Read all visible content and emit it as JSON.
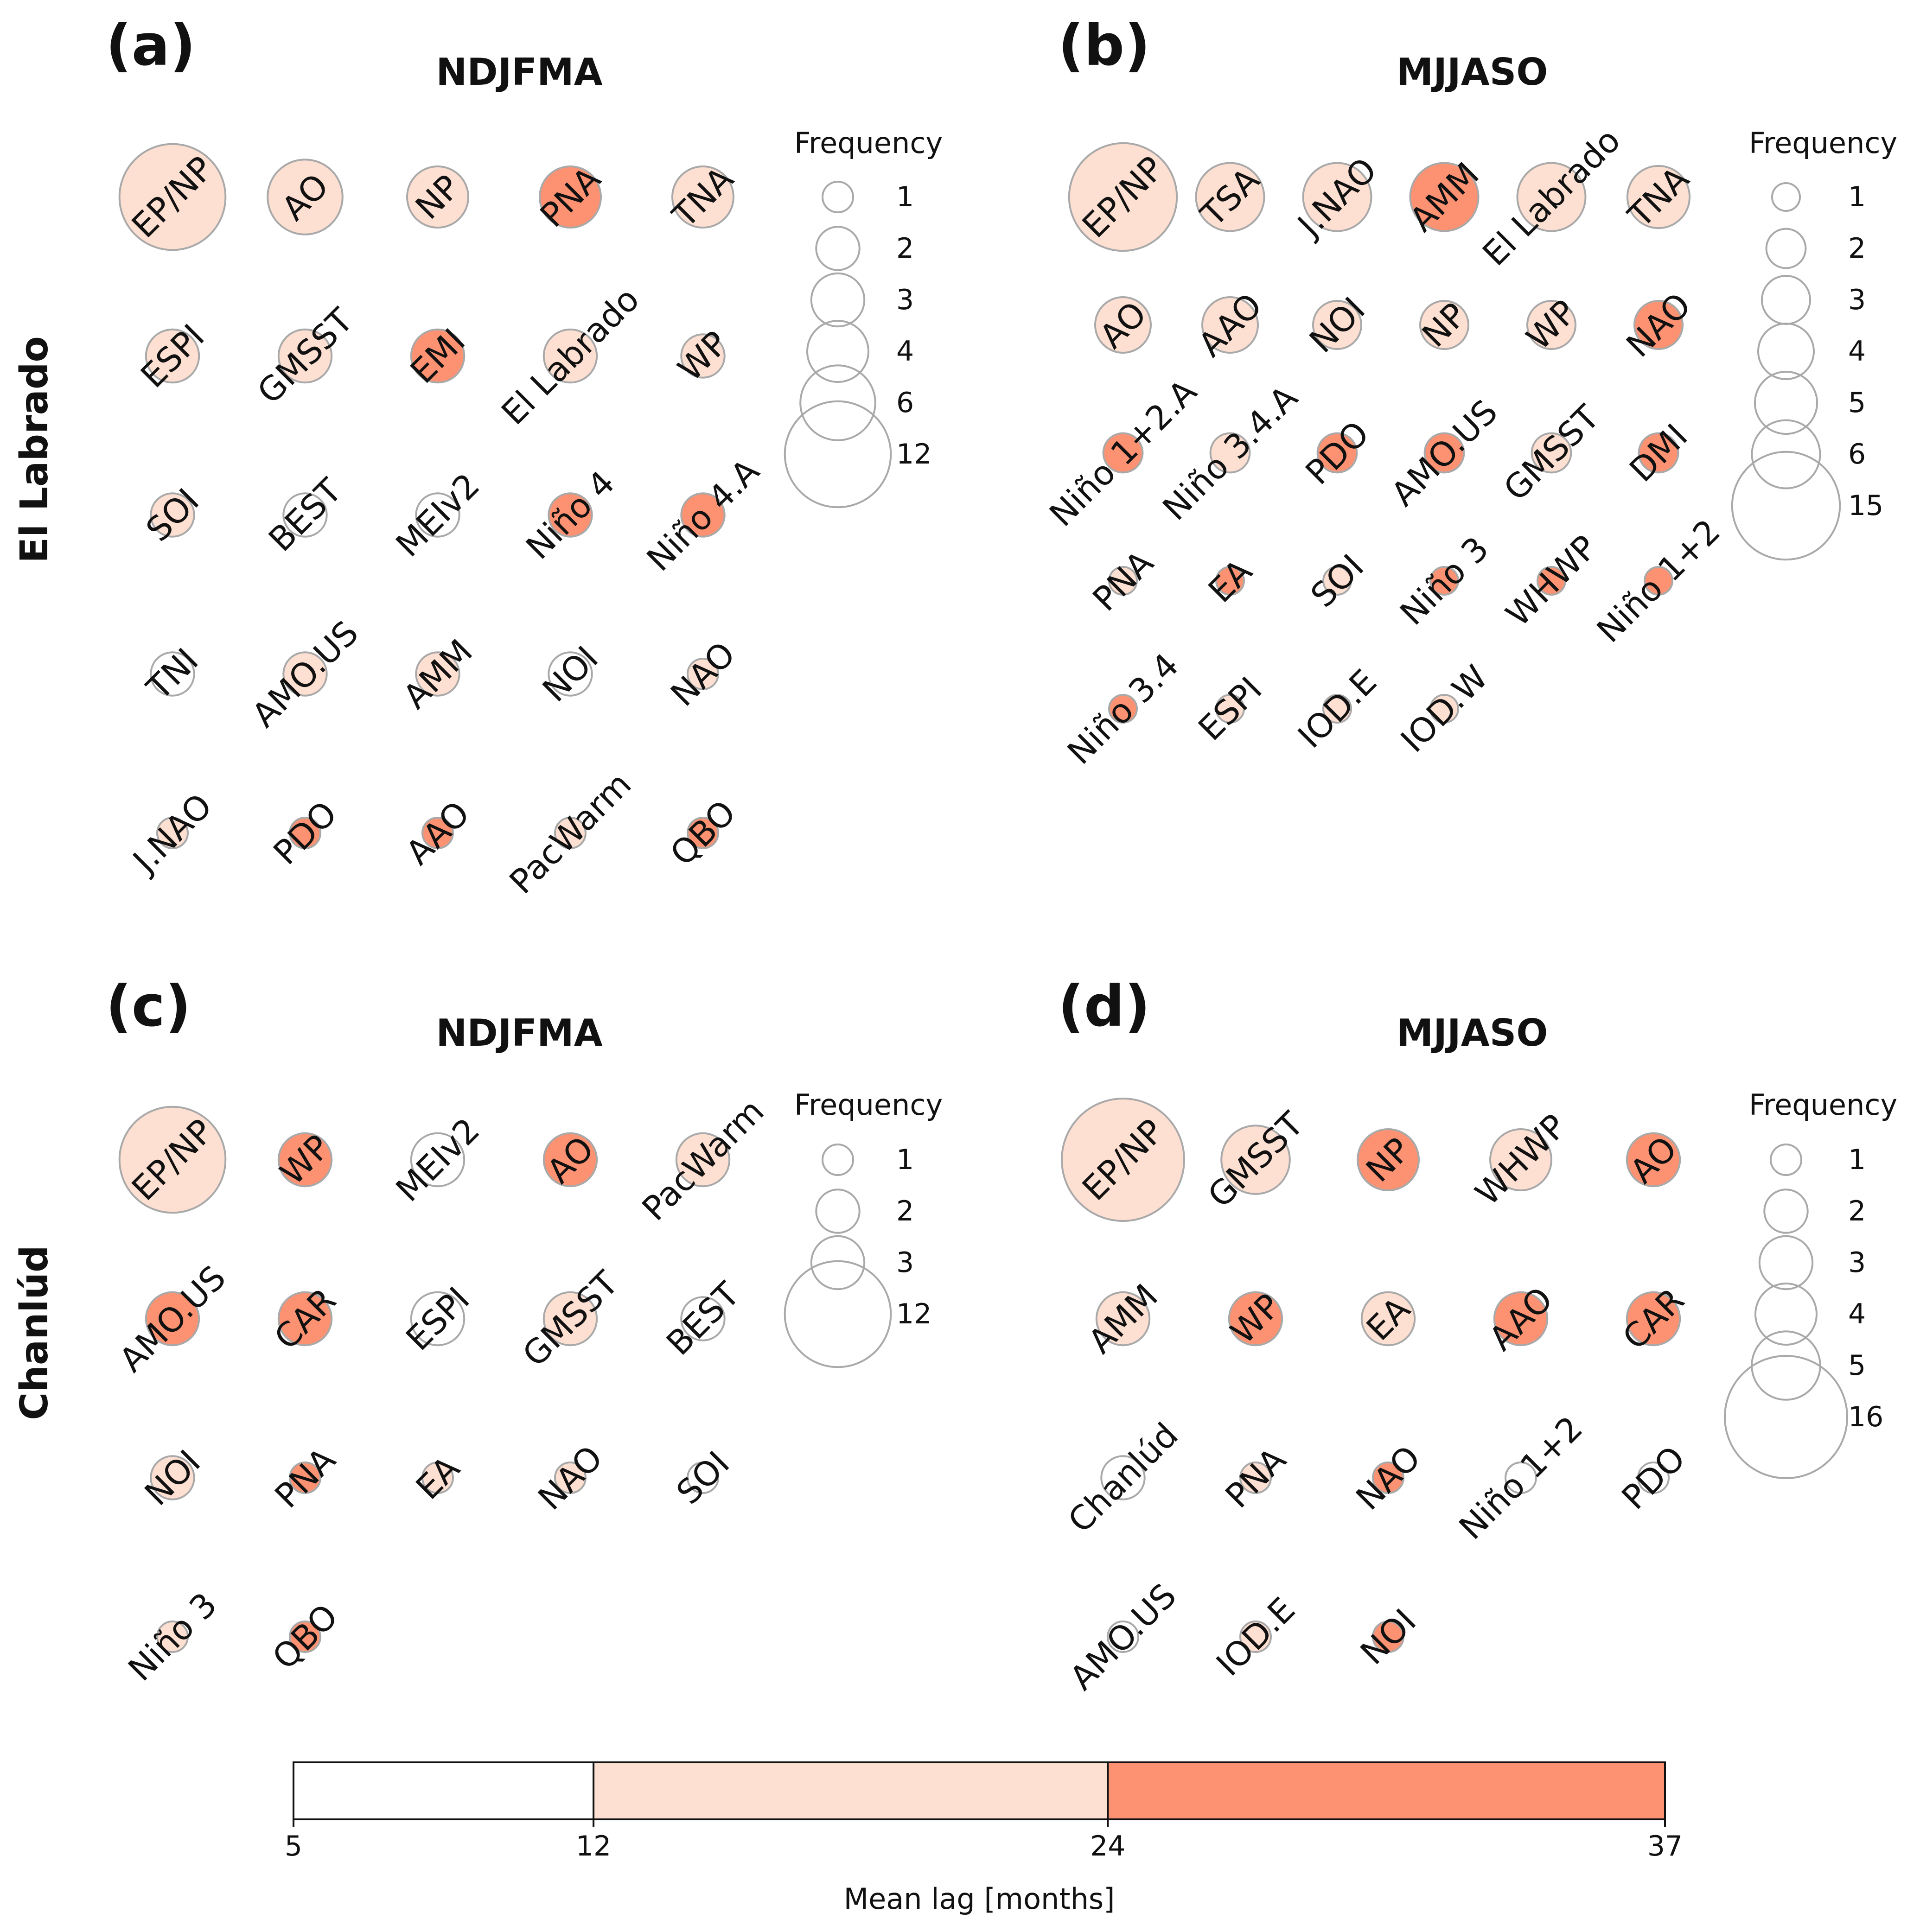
{
  "colors": {
    "low": "#ffffff",
    "mid": "#fde0d2",
    "high": "#fc9272",
    "stroke": "#a9a9a9",
    "text": "#111111"
  },
  "row_labels": [
    "El Labrado",
    "Chanlúd"
  ],
  "colorbar": {
    "label": "Mean lag [months]",
    "ticks": [
      5,
      12,
      24,
      37
    ],
    "bins": [
      {
        "from": 5,
        "to": 12,
        "color": "#ffffff"
      },
      {
        "from": 12,
        "to": 24,
        "color": "#fde0d2"
      },
      {
        "from": 24,
        "to": 37,
        "color": "#fc9272"
      }
    ]
  },
  "chart_data": [
    {
      "type": "bubble-grid",
      "panel": "(a)",
      "title": "NDJFMA",
      "station": "El Labrado",
      "cols": 5,
      "legend": {
        "title": "Frequency",
        "sizes": [
          1,
          2,
          3,
          4,
          6,
          12
        ]
      },
      "items": [
        {
          "label": "EP/NP",
          "frequency": 12,
          "lag_class": "mid"
        },
        {
          "label": "AO",
          "frequency": 6,
          "lag_class": "mid"
        },
        {
          "label": "NP",
          "frequency": 4,
          "lag_class": "mid"
        },
        {
          "label": "PNA",
          "frequency": 4,
          "lag_class": "high"
        },
        {
          "label": "TNA",
          "frequency": 4,
          "lag_class": "mid"
        },
        {
          "label": "ESPI",
          "frequency": 3,
          "lag_class": "mid"
        },
        {
          "label": "GMSST",
          "frequency": 3,
          "lag_class": "mid"
        },
        {
          "label": "EMI",
          "frequency": 3,
          "lag_class": "high"
        },
        {
          "label": "El Labrado",
          "frequency": 3,
          "lag_class": "mid"
        },
        {
          "label": "WP",
          "frequency": 2,
          "lag_class": "mid"
        },
        {
          "label": "SOI",
          "frequency": 2,
          "lag_class": "mid"
        },
        {
          "label": "BEST",
          "frequency": 2,
          "lag_class": "low"
        },
        {
          "label": "MEIv2",
          "frequency": 2,
          "lag_class": "low"
        },
        {
          "label": "Niño 4",
          "frequency": 2,
          "lag_class": "high"
        },
        {
          "label": "Niño 4.A",
          "frequency": 2,
          "lag_class": "high"
        },
        {
          "label": "TNI",
          "frequency": 2,
          "lag_class": "low"
        },
        {
          "label": "AMO.US",
          "frequency": 2,
          "lag_class": "mid"
        },
        {
          "label": "AMM",
          "frequency": 2,
          "lag_class": "mid"
        },
        {
          "label": "NOI",
          "frequency": 2,
          "lag_class": "low"
        },
        {
          "label": "NAO",
          "frequency": 1,
          "lag_class": "mid"
        },
        {
          "label": "J.NAO",
          "frequency": 1,
          "lag_class": "mid"
        },
        {
          "label": "PDO",
          "frequency": 1,
          "lag_class": "high"
        },
        {
          "label": "AAO",
          "frequency": 1,
          "lag_class": "high"
        },
        {
          "label": "PacWarm",
          "frequency": 1,
          "lag_class": "mid"
        },
        {
          "label": "QBO",
          "frequency": 1,
          "lag_class": "high"
        }
      ]
    },
    {
      "type": "bubble-grid",
      "panel": "(b)",
      "title": "MJJASO",
      "station": "El Labrado",
      "cols": 6,
      "legend": {
        "title": "Frequency",
        "sizes": [
          1,
          2,
          3,
          4,
          5,
          6,
          15
        ]
      },
      "items": [
        {
          "label": "EP/NP",
          "frequency": 15,
          "lag_class": "mid"
        },
        {
          "label": "TSA",
          "frequency": 6,
          "lag_class": "mid"
        },
        {
          "label": "J.NAO",
          "frequency": 6,
          "lag_class": "mid"
        },
        {
          "label": "AMM",
          "frequency": 6,
          "lag_class": "high"
        },
        {
          "label": "El Labrado",
          "frequency": 6,
          "lag_class": "mid"
        },
        {
          "label": "TNA",
          "frequency": 5,
          "lag_class": "mid"
        },
        {
          "label": "AO",
          "frequency": 4,
          "lag_class": "mid"
        },
        {
          "label": "AAO",
          "frequency": 4,
          "lag_class": "mid"
        },
        {
          "label": "NOI",
          "frequency": 3,
          "lag_class": "mid"
        },
        {
          "label": "NP",
          "frequency": 3,
          "lag_class": "mid"
        },
        {
          "label": "WP",
          "frequency": 3,
          "lag_class": "mid"
        },
        {
          "label": "NAO",
          "frequency": 3,
          "lag_class": "high"
        },
        {
          "label": "Niño 1+2.A",
          "frequency": 2,
          "lag_class": "high"
        },
        {
          "label": "Niño 3.4.A",
          "frequency": 2,
          "lag_class": "mid"
        },
        {
          "label": "PDO",
          "frequency": 2,
          "lag_class": "high"
        },
        {
          "label": "AMO.US",
          "frequency": 2,
          "lag_class": "high"
        },
        {
          "label": "GMSST",
          "frequency": 2,
          "lag_class": "mid"
        },
        {
          "label": "DMI",
          "frequency": 2,
          "lag_class": "high"
        },
        {
          "label": "PNA",
          "frequency": 1,
          "lag_class": "mid"
        },
        {
          "label": "EA",
          "frequency": 1,
          "lag_class": "high"
        },
        {
          "label": "SOI",
          "frequency": 1,
          "lag_class": "mid"
        },
        {
          "label": "Niño 3",
          "frequency": 1,
          "lag_class": "high"
        },
        {
          "label": "WHWP",
          "frequency": 1,
          "lag_class": "high"
        },
        {
          "label": "Niño 1+2",
          "frequency": 1,
          "lag_class": "high"
        },
        {
          "label": "Niño 3.4",
          "frequency": 1,
          "lag_class": "high"
        },
        {
          "label": "ESPI",
          "frequency": 1,
          "lag_class": "mid"
        },
        {
          "label": "IOD.E",
          "frequency": 1,
          "lag_class": "mid"
        },
        {
          "label": "IOD.W",
          "frequency": 1,
          "lag_class": "mid"
        }
      ]
    },
    {
      "type": "bubble-grid",
      "panel": "(c)",
      "title": "NDJFMA",
      "station": "Chanlúd",
      "cols": 5,
      "legend": {
        "title": "Frequency",
        "sizes": [
          1,
          2,
          3,
          12
        ]
      },
      "items": [
        {
          "label": "EP/NP",
          "frequency": 12,
          "lag_class": "mid"
        },
        {
          "label": "WP",
          "frequency": 3,
          "lag_class": "high"
        },
        {
          "label": "MEIv2",
          "frequency": 3,
          "lag_class": "low"
        },
        {
          "label": "AO",
          "frequency": 3,
          "lag_class": "high"
        },
        {
          "label": "PacWarm",
          "frequency": 3,
          "lag_class": "mid"
        },
        {
          "label": "AMO.US",
          "frequency": 3,
          "lag_class": "high"
        },
        {
          "label": "CAR",
          "frequency": 3,
          "lag_class": "high"
        },
        {
          "label": "ESPI",
          "frequency": 3,
          "lag_class": "low"
        },
        {
          "label": "GMSST",
          "frequency": 3,
          "lag_class": "mid"
        },
        {
          "label": "BEST",
          "frequency": 2,
          "lag_class": "low"
        },
        {
          "label": "NOI",
          "frequency": 2,
          "lag_class": "mid"
        },
        {
          "label": "PNA",
          "frequency": 1,
          "lag_class": "high"
        },
        {
          "label": "EA",
          "frequency": 1,
          "lag_class": "mid"
        },
        {
          "label": "NAO",
          "frequency": 1,
          "lag_class": "mid"
        },
        {
          "label": "SOI",
          "frequency": 1,
          "lag_class": "low"
        },
        {
          "label": "Niño 3",
          "frequency": 1,
          "lag_class": "mid"
        },
        {
          "label": "QBO",
          "frequency": 1,
          "lag_class": "high"
        }
      ]
    },
    {
      "type": "bubble-grid",
      "panel": "(d)",
      "title": "MJJASO",
      "station": "Chanlúd",
      "cols": 5,
      "legend": {
        "title": "Frequency",
        "sizes": [
          1,
          2,
          3,
          4,
          5,
          16
        ]
      },
      "items": [
        {
          "label": "EP/NP",
          "frequency": 16,
          "lag_class": "mid"
        },
        {
          "label": "GMSST",
          "frequency": 5,
          "lag_class": "mid"
        },
        {
          "label": "NP",
          "frequency": 4,
          "lag_class": "high"
        },
        {
          "label": "WHWP",
          "frequency": 4,
          "lag_class": "mid"
        },
        {
          "label": "AO",
          "frequency": 3,
          "lag_class": "high"
        },
        {
          "label": "AMM",
          "frequency": 3,
          "lag_class": "mid"
        },
        {
          "label": "WP",
          "frequency": 3,
          "lag_class": "high"
        },
        {
          "label": "EA",
          "frequency": 3,
          "lag_class": "mid"
        },
        {
          "label": "AAO",
          "frequency": 3,
          "lag_class": "high"
        },
        {
          "label": "CAR",
          "frequency": 3,
          "lag_class": "high"
        },
        {
          "label": "Chanlúd",
          "frequency": 2,
          "lag_class": "low"
        },
        {
          "label": "PNA",
          "frequency": 1,
          "lag_class": "mid"
        },
        {
          "label": "NAO",
          "frequency": 1,
          "lag_class": "high"
        },
        {
          "label": "Niño 1+2",
          "frequency": 1,
          "lag_class": "low"
        },
        {
          "label": "PDO",
          "frequency": 1,
          "lag_class": "low"
        },
        {
          "label": "AMO.US",
          "frequency": 1,
          "lag_class": "low"
        },
        {
          "label": "IOD.E",
          "frequency": 1,
          "lag_class": "mid"
        },
        {
          "label": "NOI",
          "frequency": 1,
          "lag_class": "high"
        }
      ]
    }
  ]
}
